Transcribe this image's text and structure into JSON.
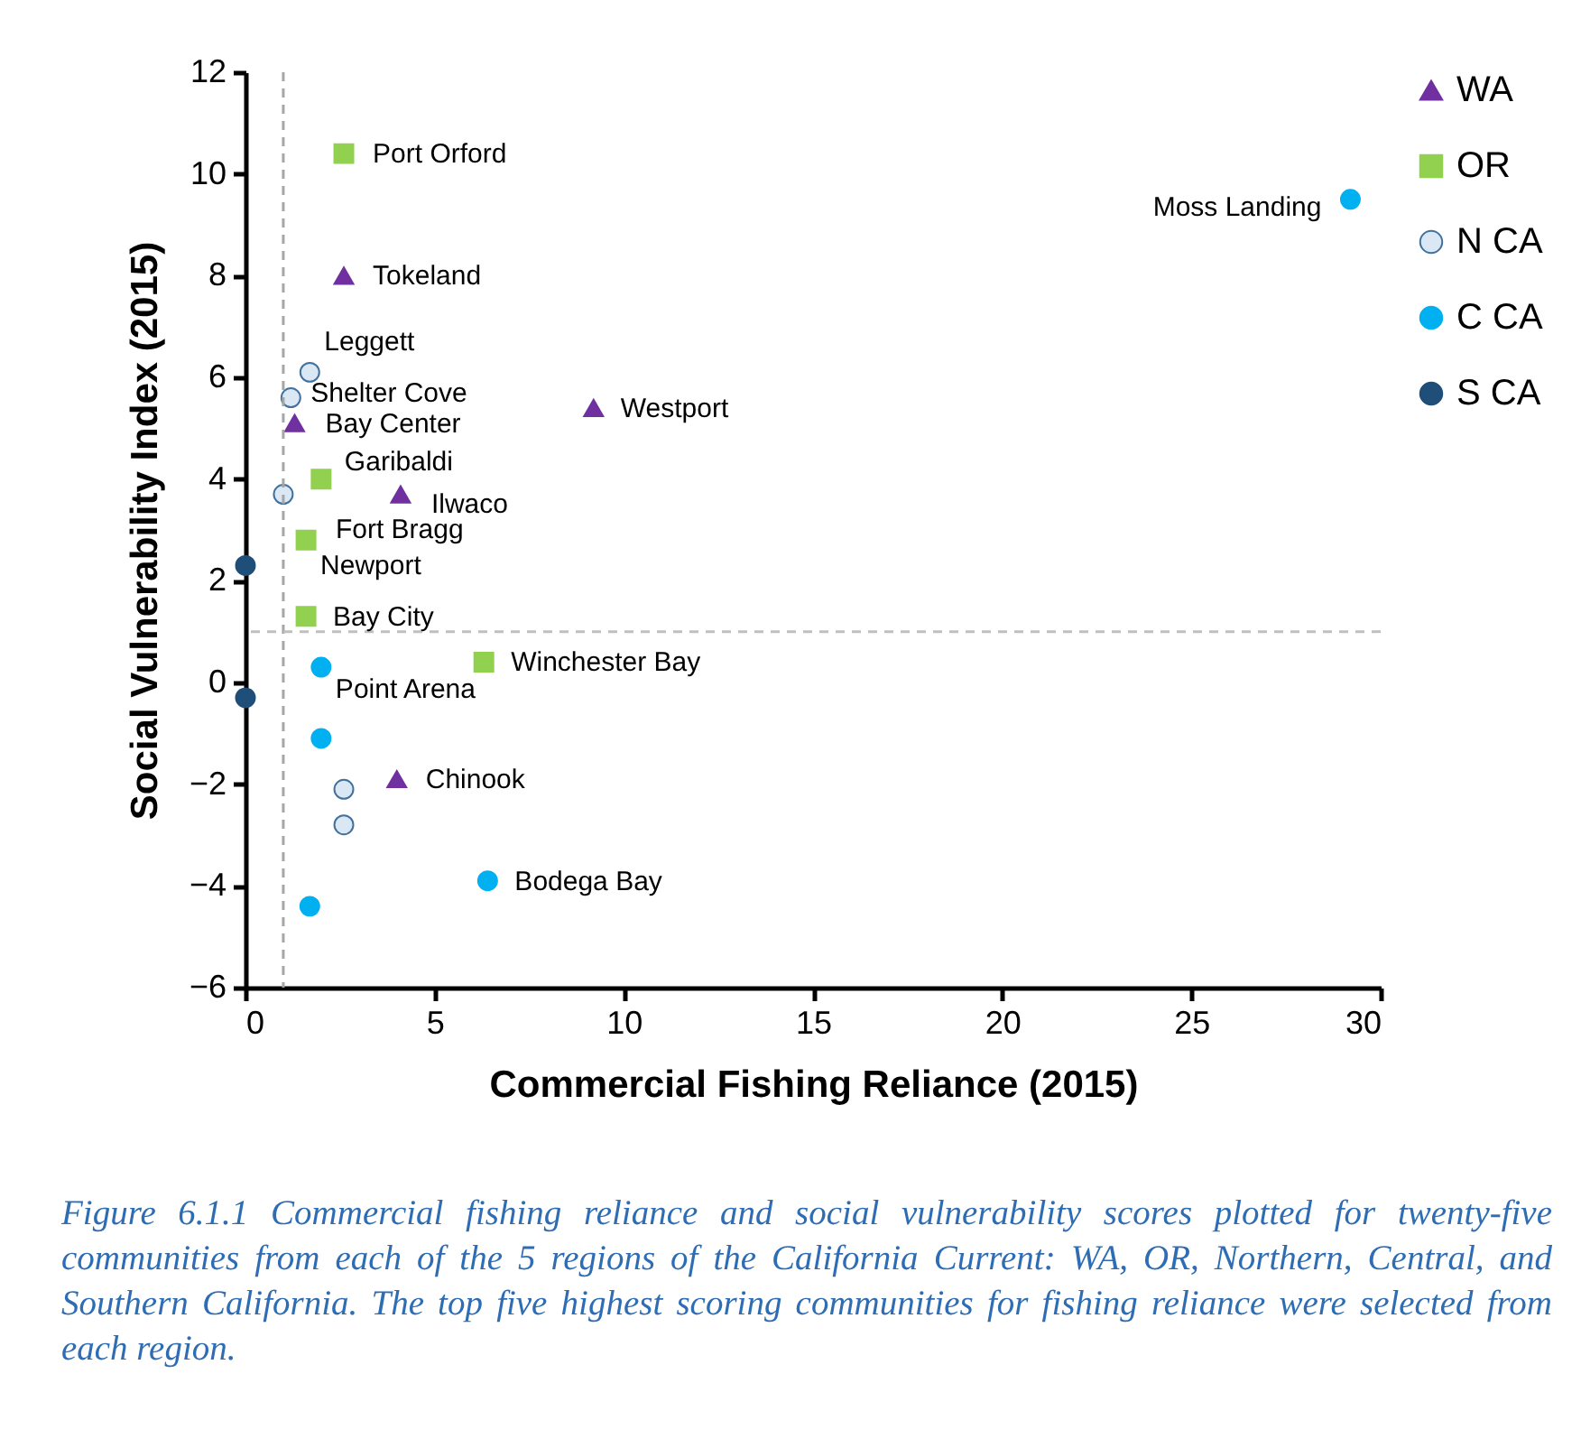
{
  "chart_data": {
    "type": "scatter",
    "xlabel": "Commercial Fishing Reliance (2015)",
    "ylabel": "Social Vulnerability Index (2015)",
    "xlim": [
      0,
      30
    ],
    "xticks": [
      0,
      5,
      10,
      15,
      20,
      25,
      30
    ],
    "ylim": [
      -6,
      12
    ],
    "yticks": [
      -6,
      -4,
      -2,
      0,
      2,
      4,
      6,
      8,
      10,
      12
    ],
    "grid": false,
    "legend": "right",
    "series": [
      {
        "name": "WA",
        "color": "#7030a0",
        "marker": "triangle",
        "x": [
          2.6,
          9.2,
          1.3,
          4.1,
          4.0
        ],
        "values": [
          8.0,
          5.4,
          5.1,
          3.7,
          -1.9
        ]
      },
      {
        "name": "OR",
        "color": "#92d050",
        "marker": "square",
        "x": [
          2.6,
          2.0,
          1.6,
          1.6,
          6.3
        ],
        "values": [
          10.4,
          4.0,
          2.8,
          1.3,
          0.4
        ]
      },
      {
        "name": "N CA",
        "color": "#dae8f5",
        "marker": "circle",
        "x": [
          1.7,
          1.2,
          1.0,
          2.6,
          2.6
        ],
        "values": [
          6.1,
          5.6,
          3.7,
          -2.1,
          -2.8
        ]
      },
      {
        "name": "C CA",
        "color": "#00b0f0",
        "marker": "circle",
        "x": [
          29.2,
          2.0,
          2.0,
          6.4,
          1.7
        ],
        "values": [
          9.5,
          0.3,
          -1.1,
          -3.9,
          -4.4
        ]
      },
      {
        "name": "S CA",
        "color": "#1f4e79",
        "marker": "circle",
        "x": [
          0.0,
          0.0
        ],
        "values": [
          2.3,
          -0.3
        ]
      }
    ],
    "ref_lines": [
      {
        "axis": "x",
        "value": 1,
        "color": "#a6a6a6",
        "line_style": "dashed"
      },
      {
        "axis": "y",
        "value": 1,
        "color": "#bfbfbf",
        "line_style": "dashed"
      }
    ],
    "annotations": [
      {
        "text": "Port Orford",
        "x": 2.6,
        "y": 10.4
      },
      {
        "text": "Tokeland",
        "x": 2.6,
        "y": 8.0
      },
      {
        "text": "Leggett",
        "x": 1.7,
        "y": 6.1
      },
      {
        "text": "Shelter Cove",
        "x": 1.2,
        "y": 5.6
      },
      {
        "text": "Bay Center",
        "x": 1.3,
        "y": 5.1
      },
      {
        "text": "Garibaldi",
        "x": 2.0,
        "y": 4.0
      },
      {
        "text": "Ilwaco",
        "x": 4.1,
        "y": 3.7
      },
      {
        "text": "Fort Bragg",
        "x": 1.0,
        "y": 3.7
      },
      {
        "text": "Newport",
        "x": 1.6,
        "y": 2.8
      },
      {
        "text": "Bay City",
        "x": 1.6,
        "y": 1.3
      },
      {
        "text": "Westport",
        "x": 9.2,
        "y": 5.4
      },
      {
        "text": "Winchester Bay",
        "x": 6.3,
        "y": 0.4
      },
      {
        "text": "Point Arena",
        "x": 2.0,
        "y": 0.3
      },
      {
        "text": "Chinook",
        "x": 4.0,
        "y": -1.9
      },
      {
        "text": "Bodega Bay",
        "x": 6.4,
        "y": -3.9
      },
      {
        "text": "Moss Landing",
        "x": 29.2,
        "y": 9.5
      },
      "Figure 6.1.1 Commercial fishing reliance and social vulnerability scores plotted for twenty-five communities from each of the 5 regions of the California Current: WA, OR, Northern, Central, and Southern California. The top five highest scoring communities for fishing reliance were selected from each region."
    ]
  }
}
